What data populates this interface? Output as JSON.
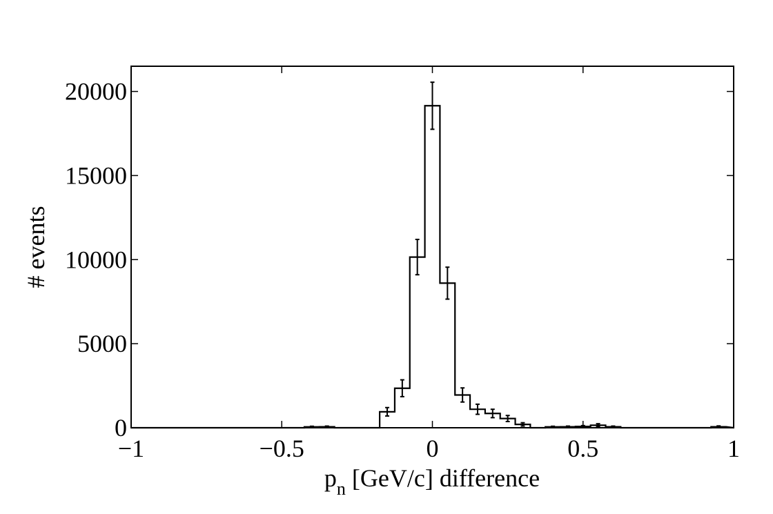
{
  "chart_data": {
    "type": "histogram",
    "title": "",
    "xlabel": {
      "main": "p",
      "subscript": "n",
      "rest": " [GeV/c] difference"
    },
    "ylabel": "# events",
    "xlim": [
      -1,
      1
    ],
    "ylim": [
      0,
      21500
    ],
    "xticks": [
      -1,
      -0.5,
      0,
      0.5,
      1
    ],
    "xtick_labels": [
      "−1",
      "−0.5",
      "0",
      "0.5",
      "1"
    ],
    "yticks": [
      0,
      5000,
      10000,
      15000,
      20000
    ],
    "ytick_labels": [
      "0",
      "5000",
      "10000",
      "15000",
      "20000"
    ],
    "grid": false,
    "bin_width": 0.05,
    "bins": [
      {
        "x": -0.4,
        "value": 50,
        "error": 40
      },
      {
        "x": -0.35,
        "value": 60,
        "error": 40
      },
      {
        "x": -0.15,
        "value": 950,
        "error": 250
      },
      {
        "x": -0.1,
        "value": 2350,
        "error": 500
      },
      {
        "x": -0.05,
        "value": 10150,
        "error": 1050
      },
      {
        "x": 0.0,
        "value": 19150,
        "error": 1400
      },
      {
        "x": 0.05,
        "value": 8600,
        "error": 950
      },
      {
        "x": 0.1,
        "value": 1950,
        "error": 420
      },
      {
        "x": 0.15,
        "value": 1100,
        "error": 300
      },
      {
        "x": 0.2,
        "value": 850,
        "error": 250
      },
      {
        "x": 0.25,
        "value": 550,
        "error": 180
      },
      {
        "x": 0.3,
        "value": 200,
        "error": 100
      },
      {
        "x": 0.4,
        "value": 50,
        "error": 40
      },
      {
        "x": 0.45,
        "value": 60,
        "error": 40
      },
      {
        "x": 0.5,
        "value": 80,
        "error": 50
      },
      {
        "x": 0.55,
        "value": 150,
        "error": 90
      },
      {
        "x": 0.6,
        "value": 60,
        "error": 40
      },
      {
        "x": 0.95,
        "value": 60,
        "error": 50
      }
    ]
  }
}
